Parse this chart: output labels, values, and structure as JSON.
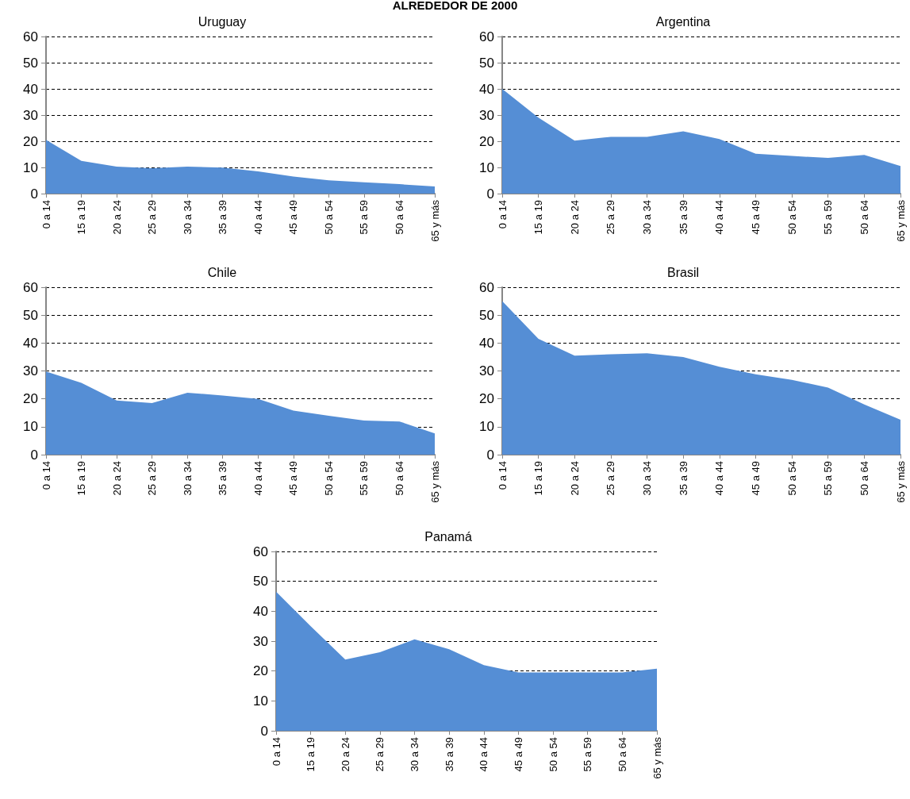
{
  "chart_data": [
    {
      "type": "area",
      "title": "Uruguay",
      "annotations": [
        "ALREDEDOR DE 2000"
      ],
      "categories": [
        "0 a 14",
        "15 a 19",
        "20 a 24",
        "25 a 29",
        "30 a 34",
        "35 a 39",
        "40 a 44",
        "45 a 49",
        "50 a 54",
        "55 a 59",
        "50 a 64",
        "65 y más"
      ],
      "series": [
        {
          "color": "#558ed5",
          "values": [
            20.5,
            12.5,
            10.3,
            9.7,
            10.3,
            9.9,
            8.5,
            6.5,
            5.1,
            4.3,
            3.6,
            2.7
          ]
        }
      ],
      "ylim": [
        0,
        60
      ],
      "yticks": [
        0,
        10,
        20,
        30,
        40,
        50,
        60
      ],
      "grid": "y"
    },
    {
      "type": "area",
      "title": "Argentina",
      "categories": [
        "0 a 14",
        "15 a 19",
        "20 a 24",
        "25 a 29",
        "30 a 34",
        "35 a 39",
        "40 a 44",
        "45 a 49",
        "50 a 54",
        "55 a 59",
        "50 a 64",
        "65 y más"
      ],
      "series": [
        {
          "color": "#558ed5",
          "values": [
            40,
            29,
            20.2,
            21.7,
            21.7,
            23.8,
            20.8,
            15.2,
            14.4,
            13.6,
            14.8,
            10.5
          ]
        }
      ],
      "ylim": [
        0,
        60
      ],
      "yticks": [
        0,
        10,
        20,
        30,
        40,
        50,
        60
      ],
      "grid": "y"
    },
    {
      "type": "area",
      "title": "Chile",
      "categories": [
        "0 a 14",
        "15 a 19",
        "20 a 24",
        "25 a 29",
        "30 a 34",
        "35 a 39",
        "40 a 44",
        "45 a 49",
        "50 a 54",
        "55 a 59",
        "50 a 64",
        "65 y más"
      ],
      "series": [
        {
          "color": "#558ed5",
          "values": [
            29.8,
            25.7,
            19.4,
            18.5,
            22.2,
            21.2,
            20,
            15.8,
            13.9,
            12.2,
            11.9,
            7.6
          ]
        }
      ],
      "ylim": [
        0,
        60
      ],
      "yticks": [
        0,
        10,
        20,
        30,
        40,
        50,
        60
      ],
      "grid": "y"
    },
    {
      "type": "area",
      "title": "Brasil",
      "categories": [
        "0 a 14",
        "15 a 19",
        "20 a 24",
        "25 a 29",
        "30 a 34",
        "35 a 39",
        "40 a 44",
        "45 a 49",
        "50 a 54",
        "55 a 59",
        "50 a 64",
        "65 y más"
      ],
      "series": [
        {
          "color": "#558ed5",
          "values": [
            55,
            41.5,
            35.5,
            36,
            36.3,
            35,
            31.5,
            28.8,
            26.8,
            24,
            18,
            12.5
          ]
        }
      ],
      "ylim": [
        0,
        60
      ],
      "yticks": [
        0,
        10,
        20,
        30,
        40,
        50,
        60
      ],
      "grid": "y"
    },
    {
      "type": "area",
      "title": "Panamá",
      "categories": [
        "0 a 14",
        "15 a 19",
        "20 a 24",
        "25 a 29",
        "30 a 34",
        "35 a 39",
        "40 a 44",
        "45 a 49",
        "50 a 54",
        "55 a 59",
        "50 a 64",
        "65 y más"
      ],
      "series": [
        {
          "color": "#558ed5",
          "values": [
            46.5,
            35,
            23.8,
            26.3,
            30.6,
            27.3,
            22,
            19.5,
            19.5,
            19.5,
            19.5,
            20.8
          ]
        }
      ],
      "ylim": [
        0,
        60
      ],
      "yticks": [
        0,
        10,
        20,
        30,
        40,
        50,
        60
      ],
      "grid": "y"
    }
  ]
}
